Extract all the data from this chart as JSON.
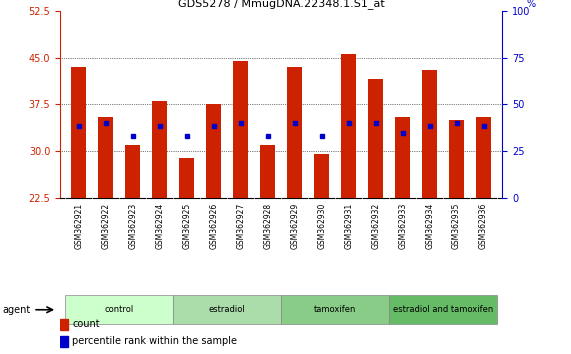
{
  "title": "GDS5278 / MmugDNA.22348.1.S1_at",
  "samples": [
    "GSM362921",
    "GSM362922",
    "GSM362923",
    "GSM362924",
    "GSM362925",
    "GSM362926",
    "GSM362927",
    "GSM362928",
    "GSM362929",
    "GSM362930",
    "GSM362931",
    "GSM362932",
    "GSM362933",
    "GSM362934",
    "GSM362935",
    "GSM362936"
  ],
  "count_values_all": [
    43.5,
    35.5,
    31.0,
    38.0,
    29.0,
    37.5,
    44.5,
    31.0,
    43.5,
    29.5,
    45.5,
    41.5,
    35.5,
    43.0,
    35.0,
    35.5
  ],
  "percentile_values_all": [
    34.0,
    34.5,
    32.5,
    34.0,
    32.5,
    34.0,
    34.5,
    32.5,
    34.5,
    32.5,
    34.5,
    34.5,
    33.0,
    34.0,
    34.5,
    34.0
  ],
  "bar_color": "#cc2200",
  "dot_color": "#0000cc",
  "ymin": 22.5,
  "ymax": 52.5,
  "yticks_left": [
    22.5,
    30.0,
    37.5,
    45.0,
    52.5
  ],
  "yticks_right": [
    0,
    25,
    50,
    75,
    100
  ],
  "groups": [
    {
      "label": "control",
      "start": 0,
      "end": 4,
      "color": "#ccffcc"
    },
    {
      "label": "estradiol",
      "start": 4,
      "end": 8,
      "color": "#aaddaa"
    },
    {
      "label": "tamoxifen",
      "start": 8,
      "end": 12,
      "color": "#88cc88"
    },
    {
      "label": "estradiol and tamoxifen",
      "start": 12,
      "end": 16,
      "color": "#66bb66"
    }
  ],
  "agent_label": "agent",
  "legend_count": "count",
  "legend_percentile": "percentile rank within the sample",
  "bar_width": 0.55,
  "background_color": "#ffffff",
  "plot_bg": "#ffffff",
  "left_tick_color": "#cc2200",
  "right_tick_color": "#0000cc",
  "sample_area_color": "#dddddd",
  "grid_yticks": [
    30.0,
    37.5,
    45.0
  ]
}
